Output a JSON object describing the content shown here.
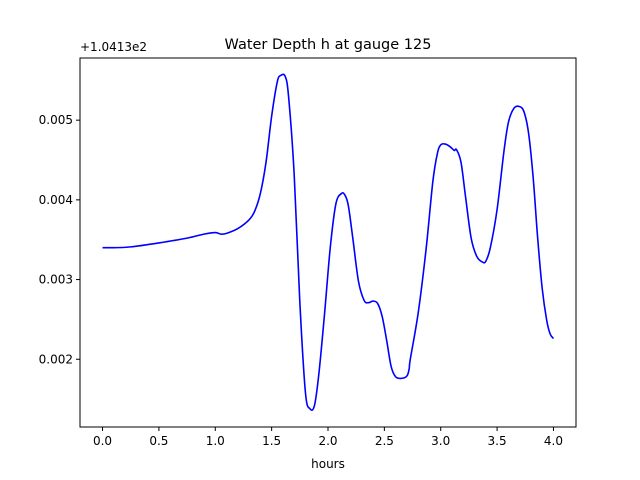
{
  "chart_data": {
    "type": "line",
    "title": "Water Depth h at gauge 125",
    "xlabel": "hours",
    "ylabel": "",
    "offset_label": "+1.0413e2",
    "xlim": [
      -0.2,
      4.2
    ],
    "ylim": [
      0.00115,
      0.00578
    ],
    "xticks": [
      0.0,
      0.5,
      1.0,
      1.5,
      2.0,
      2.5,
      3.0,
      3.5,
      4.0
    ],
    "xtick_labels": [
      "0.0",
      "0.5",
      "1.0",
      "1.5",
      "2.0",
      "2.5",
      "3.0",
      "3.5",
      "4.0"
    ],
    "yticks": [
      0.002,
      0.003,
      0.004,
      0.005
    ],
    "ytick_labels": [
      "0.002",
      "0.003",
      "0.004",
      "0.005"
    ],
    "grid": false,
    "series": [
      {
        "color": "#0000ff",
        "x": [
          0.0,
          0.1,
          0.25,
          0.5,
          0.75,
          0.9,
          1.0,
          1.05,
          1.1,
          1.2,
          1.3,
          1.35,
          1.4,
          1.45,
          1.5,
          1.55,
          1.58,
          1.62,
          1.65,
          1.7,
          1.75,
          1.8,
          1.84,
          1.88,
          1.92,
          1.97,
          2.02,
          2.07,
          2.12,
          2.15,
          2.18,
          2.22,
          2.27,
          2.32,
          2.36,
          2.4,
          2.44,
          2.48,
          2.52,
          2.56,
          2.6,
          2.65,
          2.7,
          2.72,
          2.73,
          2.8,
          2.87,
          2.93,
          2.97,
          3.0,
          3.04,
          3.08,
          3.12,
          3.14,
          3.18,
          3.22,
          3.27,
          3.32,
          3.37,
          3.4,
          3.44,
          3.5,
          3.56,
          3.6,
          3.65,
          3.7,
          3.74,
          3.78,
          3.82,
          3.86,
          3.9,
          3.94,
          3.97,
          4.0
        ],
        "y": [
          0.0034,
          0.0034,
          0.00341,
          0.00346,
          0.00352,
          0.00357,
          0.00359,
          0.00357,
          0.00358,
          0.00364,
          0.00375,
          0.00386,
          0.00408,
          0.00447,
          0.00505,
          0.00548,
          0.00556,
          0.00555,
          0.0053,
          0.00432,
          0.00272,
          0.00158,
          0.00138,
          0.00142,
          0.00183,
          0.00258,
          0.0034,
          0.00395,
          0.00408,
          0.00406,
          0.00393,
          0.00352,
          0.00298,
          0.00274,
          0.00271,
          0.00273,
          0.0027,
          0.00254,
          0.00224,
          0.00191,
          0.00178,
          0.00176,
          0.00179,
          0.00188,
          0.002,
          0.00258,
          0.00338,
          0.00423,
          0.00458,
          0.00469,
          0.0047,
          0.00467,
          0.00462,
          0.00463,
          0.00447,
          0.00404,
          0.00352,
          0.00329,
          0.00322,
          0.00323,
          0.0034,
          0.00388,
          0.0046,
          0.00497,
          0.00515,
          0.00517,
          0.0051,
          0.00483,
          0.00428,
          0.00352,
          0.00289,
          0.00249,
          0.00232,
          0.00226
        ]
      }
    ]
  }
}
